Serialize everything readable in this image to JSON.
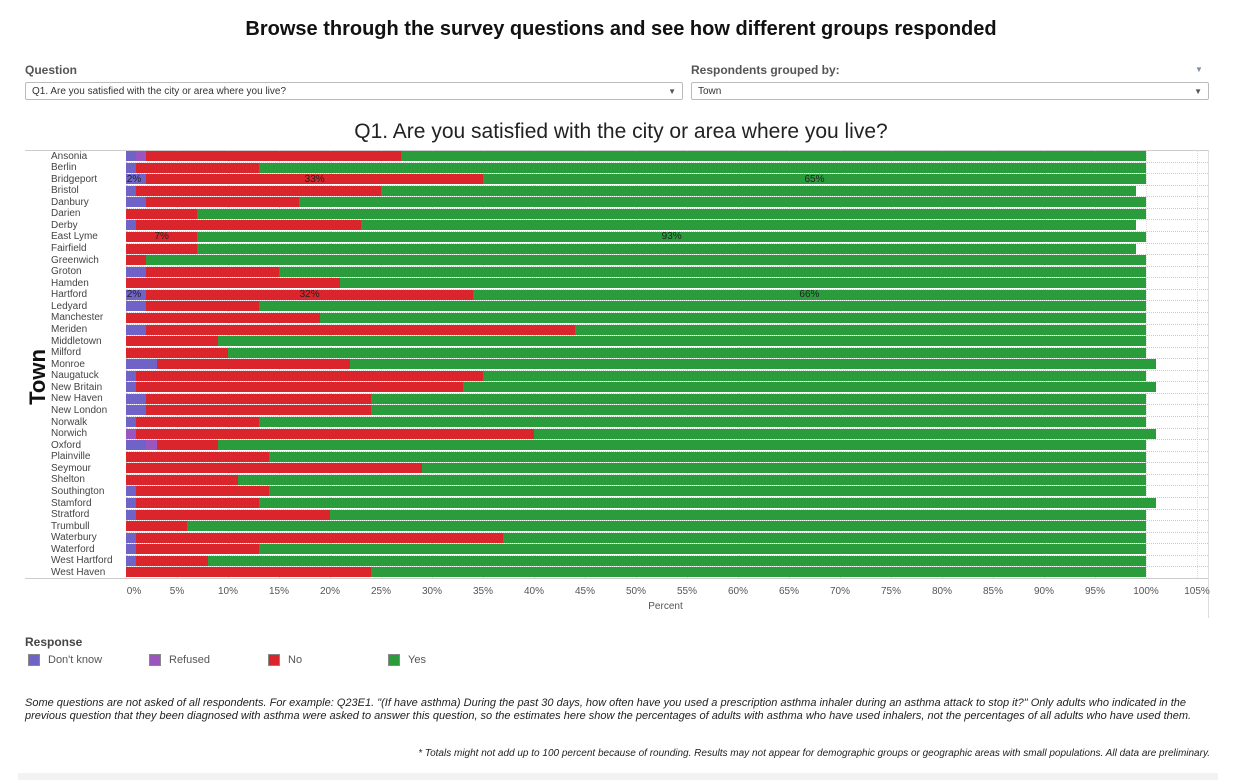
{
  "header": {
    "title": "Browse through the survey questions and see how different groups responded"
  },
  "filters": {
    "question_label": "Question",
    "question_value": "Q1. Are you satisfied with the city or area where you live?",
    "group_label": "Respondents grouped by:",
    "group_value": "Town"
  },
  "chart_data": {
    "type": "bar",
    "orientation": "horizontal-stacked",
    "title": "Q1. Are you satisfied with the city or area where you live?",
    "ylabel": "Town",
    "xlabel": "Percent",
    "xlim": [
      0,
      105
    ],
    "xticks": [
      "0%",
      "5%",
      "10%",
      "15%",
      "20%",
      "25%",
      "30%",
      "35%",
      "40%",
      "45%",
      "50%",
      "55%",
      "60%",
      "65%",
      "70%",
      "75%",
      "80%",
      "85%",
      "90%",
      "95%",
      "100%",
      "105%"
    ],
    "grid": true,
    "series_names": [
      "Don't know",
      "Refused",
      "No",
      "Yes"
    ],
    "colors": {
      "Don't know": "#6f63c8",
      "Refused": "#9b55bf",
      "No": "#d9252b",
      "Yes": "#2b9c3c"
    },
    "categories": [
      "Ansonia",
      "Berlin",
      "Bridgeport",
      "Bristol",
      "Danbury",
      "Darien",
      "Derby",
      "East Lyme",
      "Fairfield",
      "Greenwich",
      "Groton",
      "Hamden",
      "Hartford",
      "Ledyard",
      "Manchester",
      "Meriden",
      "Middletown",
      "Milford",
      "Monroe",
      "Naugatuck",
      "New Britain",
      "New Haven",
      "New London",
      "Norwalk",
      "Norwich",
      "Oxford",
      "Plainville",
      "Seymour",
      "Shelton",
      "Southington",
      "Stamford",
      "Stratford",
      "Trumbull",
      "Waterbury",
      "Waterford",
      "West Hartford",
      "West Haven"
    ],
    "series": [
      {
        "name": "Don't know",
        "values": [
          1,
          1,
          2,
          1,
          2,
          0,
          1,
          0,
          0,
          0,
          2,
          0,
          2,
          2,
          0,
          2,
          0,
          0,
          3,
          1,
          1,
          2,
          2,
          1,
          0,
          2,
          0,
          0,
          0,
          1,
          1,
          1,
          0,
          1,
          1,
          1,
          0
        ]
      },
      {
        "name": "Refused",
        "values": [
          1,
          0,
          0,
          0,
          0,
          0,
          0,
          0,
          0,
          0,
          0,
          0,
          0,
          0,
          0,
          0,
          0,
          0,
          0,
          0,
          0,
          0,
          0,
          0,
          1,
          1,
          0,
          0,
          0,
          0,
          0,
          0,
          0,
          0,
          0,
          0,
          0
        ]
      },
      {
        "name": "No",
        "values": [
          25,
          12,
          33,
          24,
          15,
          7,
          22,
          7,
          7,
          2,
          13,
          21,
          32,
          11,
          19,
          42,
          9,
          10,
          19,
          34,
          32,
          22,
          22,
          12,
          39,
          6,
          14,
          29,
          11,
          13,
          12,
          19,
          6,
          36,
          12,
          7,
          24
        ]
      },
      {
        "name": "Yes",
        "values": [
          73,
          87,
          65,
          74,
          83,
          93,
          76,
          93,
          92,
          98,
          85,
          79,
          66,
          87,
          81,
          56,
          91,
          90,
          79,
          65,
          68,
          76,
          76,
          87,
          61,
          91,
          86,
          71,
          89,
          86,
          88,
          80,
          94,
          63,
          87,
          92,
          76
        ]
      }
    ],
    "data_labels": {
      "Bridgeport": [
        "2%",
        "",
        "33%",
        "65%"
      ],
      "East Lyme": [
        "",
        "",
        "7%",
        "93%"
      ],
      "Hartford": [
        "2%",
        "",
        "32%",
        "66%"
      ]
    }
  },
  "legend": {
    "title": "Response",
    "items": [
      "Don't know",
      "Refused",
      "No",
      "Yes"
    ]
  },
  "notes": {
    "main": "Some questions are not asked of all respondents. For example: Q23E1. \"(If have asthma) During the past 30 days, how often have you used a prescription asthma inhaler during an asthma attack to stop it?\" Only adults who indicated in the previous question that they been diagnosed with asthma were asked to answer this question, so the estimates here show the percentages of adults with asthma who have used inhalers, not the percentages of all adults who have used them.",
    "footer": "* Totals might not add up to 100 percent because of rounding. Results may not appear for demographic groups or geographic areas with small populations. All data are preliminary."
  }
}
